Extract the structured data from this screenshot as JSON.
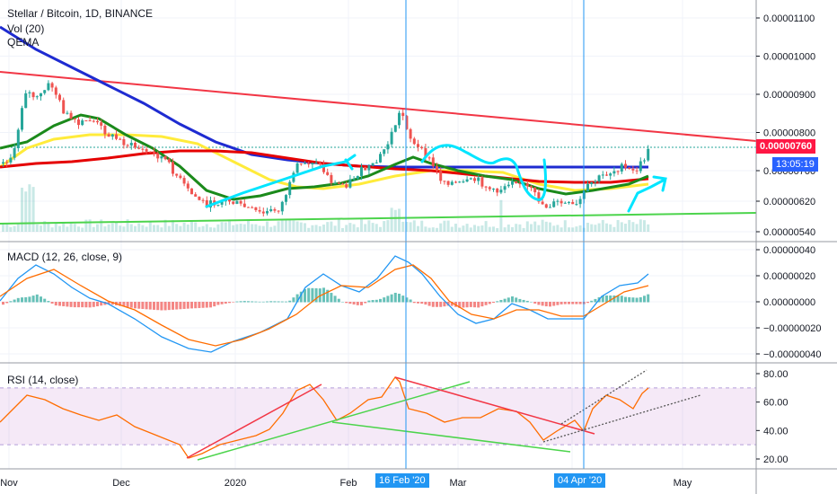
{
  "header": {
    "title": "Stellar / Bitcoin, 1D, BINANCE",
    "indicators": [
      "Vol (20)",
      "QEMA"
    ]
  },
  "price_badge": {
    "price": "0.00000760",
    "countdown": "13:05:19",
    "color": "#ff1744",
    "countdown_color": "#2962ff"
  },
  "macd_label": "MACD (12, 26, close, 9)",
  "rsi_label": "RSI (14, close)",
  "highlights": [
    {
      "label": "16 Feb '20",
      "color": "#2196f3"
    },
    {
      "label": "04 Apr '20",
      "color": "#2196f3"
    }
  ],
  "chart_data": [
    {
      "type": "candlestick",
      "pane": "price",
      "x_ticks": [
        "Nov",
        "Dec",
        "2020",
        "Feb",
        "Mar",
        "May"
      ],
      "y_ticks": [
        "0.00001100",
        "0.00001000",
        "0.00000900",
        "0.00000800",
        "0.00000700",
        "0.00000620",
        "0.00000540"
      ],
      "ylim": [
        5.2e-06,
        1.15e-05
      ],
      "close_series": [
        6.6e-06,
        7.6e-06,
        9e-06,
        8.2e-06,
        8e-06,
        7.4e-06,
        6.6e-06,
        6.4e-06,
        6.2e-06,
        6.4e-06,
        6.6e-06,
        7.2e-06,
        7e-06,
        7.2e-06,
        8.2e-06,
        7.4e-06,
        6.8e-06,
        6.6e-06,
        6.6e-06,
        6.2e-06,
        6.4e-06,
        6.2e-06,
        6.6e-06,
        6.8e-06,
        7.6e-06
      ],
      "lines": [
        {
          "name": "blue-ma",
          "color": "#1e2bd1"
        },
        {
          "name": "red-ma",
          "color": "#e50000"
        },
        {
          "name": "yellow-ma",
          "color": "#ffeb3b"
        },
        {
          "name": "green-ma",
          "color": "#1b8a1b"
        }
      ]
    },
    {
      "type": "line",
      "pane": "macd",
      "y_ticks": [
        "0.00000040",
        "0.00000020",
        "0.00000000",
        "−0.00000020",
        "−0.00000040"
      ],
      "ylim": [
        -4.5e-07,
        4.5e-07
      ]
    },
    {
      "type": "line",
      "pane": "rsi",
      "y_ticks": [
        "80.00",
        "60.00",
        "40.00",
        "20.00"
      ],
      "ylim": [
        15,
        85
      ],
      "band": [
        30,
        70
      ]
    }
  ]
}
